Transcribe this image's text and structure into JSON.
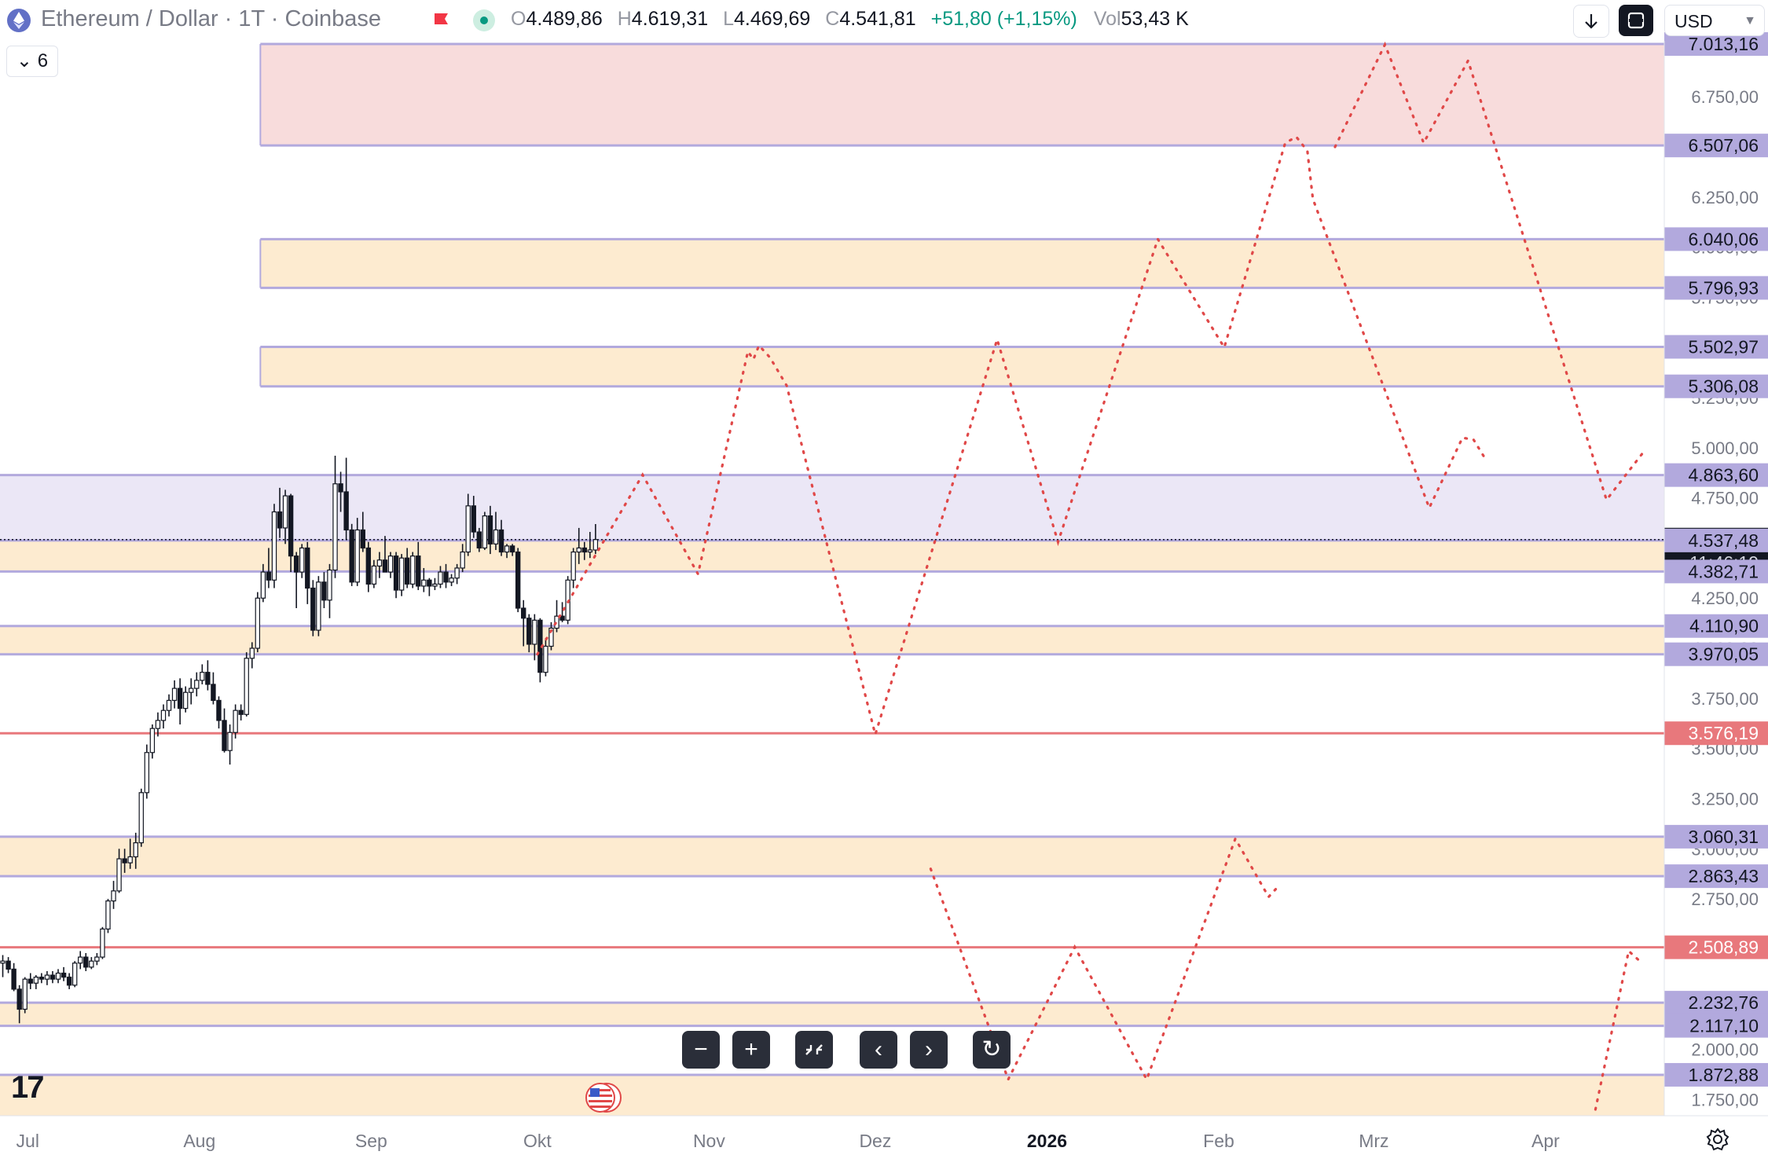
{
  "header": {
    "symbol_title": "Ethereum / Dollar · 1T · Coinbase",
    "open_key": "O",
    "open": "4.489,86",
    "high_key": "H",
    "high": "4.619,31",
    "low_key": "L",
    "low": "4.469,69",
    "close_key": "C",
    "close": "4.541,81",
    "change": "+51,80 (+1,15%)",
    "vol_key": "Vol",
    "volume": "53,43 K",
    "currency": "USD"
  },
  "indicator_toggle": "6",
  "logo_text": "17",
  "icons": {
    "symbol": "ethereum-icon",
    "flag": "flag-icon",
    "status": "market-status-dot",
    "download": "arrow-down-icon",
    "sync": "sync-icon",
    "settings": "gear-icon",
    "event": "us-flag-event-icon"
  },
  "colors": {
    "up": "#089981",
    "down": "#131722",
    "zone_fill": "#fdebd0",
    "zone_line": "#b2a9dd",
    "red_zone_fill": "#f8dcdc",
    "purple_zone_fill": "#ebe7f6",
    "red_line": "#e8787c",
    "projection": "#e04848",
    "axis_label_bg": "#b2a9dd",
    "red_label_bg": "#e8787c",
    "price_label_bg": "#131722"
  },
  "zoom_controls": [
    "−",
    "+",
    "reset-scale",
    "‹",
    "›",
    "↻"
  ],
  "chart_data": {
    "type": "candlestick",
    "x_axis": {
      "labels": [
        "Jul",
        "Aug",
        "Sep",
        "Okt",
        "Nov",
        "Dez",
        "2026",
        "Feb",
        "Mrz",
        "Apr"
      ],
      "label_dates": [
        "2025-07-01",
        "2025-08-01",
        "2025-09-01",
        "2025-10-01",
        "2025-11-01",
        "2025-12-01",
        "2026-01-01",
        "2026-02-01",
        "2026-03-01",
        "2026-04-01"
      ],
      "range": [
        "2025-06-26",
        "2026-04-19"
      ]
    },
    "y_axis": {
      "range": [
        1650,
        7150
      ],
      "ticks": [
        "7.000,00",
        "6.750,00",
        "6.500,00",
        "6.250,00",
        "6.000,00",
        "5.750,00",
        "5.500,00",
        "5.250,00",
        "5.000,00",
        "4.750,00",
        "4.500,00",
        "4.250,00",
        "4.000,00",
        "3.750,00",
        "3.500,00",
        "3.250,00",
        "3.000,00",
        "2.750,00",
        "2.500,00",
        "2.250,00",
        "2.000,00",
        "1.750,00"
      ],
      "tick_values": [
        7000,
        6750,
        6500,
        6250,
        6000,
        5750,
        5500,
        5250,
        5000,
        4750,
        4500,
        4250,
        4000,
        3750,
        3500,
        3250,
        3000,
        2750,
        2500,
        2250,
        2000,
        1750
      ]
    },
    "price_labels": [
      {
        "value": 7013.16,
        "text": "7.013,16",
        "kind": "zone"
      },
      {
        "value": 6507.06,
        "text": "6.507,06",
        "kind": "zone"
      },
      {
        "value": 6040.06,
        "text": "6.040,06",
        "kind": "zone"
      },
      {
        "value": 5796.93,
        "text": "5.796,93",
        "kind": "zone"
      },
      {
        "value": 5502.97,
        "text": "5.502,97",
        "kind": "zone"
      },
      {
        "value": 5306.08,
        "text": "5.306,08",
        "kind": "zone"
      },
      {
        "value": 4863.6,
        "text": "4.863,60",
        "kind": "zone"
      },
      {
        "value": 4541.81,
        "text": "4.541,81",
        "kind": "current",
        "countdown": "11:46:19"
      },
      {
        "value": 4537.48,
        "text": "4.537,48",
        "kind": "zone"
      },
      {
        "value": 4382.71,
        "text": "4.382,71",
        "kind": "zone"
      },
      {
        "value": 4110.9,
        "text": "4.110,90",
        "kind": "zone"
      },
      {
        "value": 3970.05,
        "text": "3.970,05",
        "kind": "zone"
      },
      {
        "value": 3576.19,
        "text": "3.576,19",
        "kind": "red"
      },
      {
        "value": 3060.31,
        "text": "3.060,31",
        "kind": "zone"
      },
      {
        "value": 2863.43,
        "text": "2.863,43",
        "kind": "zone"
      },
      {
        "value": 2508.89,
        "text": "2.508,89",
        "kind": "red"
      },
      {
        "value": 2232.76,
        "text": "2.232,76",
        "kind": "zone"
      },
      {
        "value": 2117.1,
        "text": "2.117,10",
        "kind": "zone"
      },
      {
        "value": 1872.88,
        "text": "1.872,88",
        "kind": "zone"
      }
    ],
    "zones": [
      {
        "low": 6507.06,
        "high": 7013.16,
        "style": "red",
        "from": "2025-08-12"
      },
      {
        "low": 5796.93,
        "high": 6040.06,
        "style": "orange",
        "from": "2025-08-12"
      },
      {
        "low": 5306.08,
        "high": 5502.97,
        "style": "orange",
        "from": "2025-08-12"
      },
      {
        "low": 4537.48,
        "high": 4863.6,
        "style": "purple",
        "from": "start"
      },
      {
        "low": 4382.71,
        "high": 4537.48,
        "style": "orange",
        "from": "start"
      },
      {
        "low": 3970.05,
        "high": 4110.9,
        "style": "orange",
        "from": "start"
      },
      {
        "low": 2863.43,
        "high": 3060.31,
        "style": "orange",
        "from": "start"
      },
      {
        "low": 2117.1,
        "high": 2232.76,
        "style": "orange",
        "from": "start"
      },
      {
        "low": 1650,
        "high": 1872.88,
        "style": "orange",
        "from": "start"
      }
    ],
    "lines": [
      {
        "value": 3576.19,
        "style": "red"
      },
      {
        "value": 2508.89,
        "style": "red"
      }
    ],
    "projection_paths": [
      [
        [
          "2025-10-01",
          3970
        ],
        [
          "2025-10-20",
          4865
        ],
        [
          "2025-10-30",
          4370
        ],
        [
          "2025-11-08",
          5480
        ],
        [
          "2025-11-09",
          5440
        ],
        [
          "2025-11-10",
          5510
        ],
        [
          "2025-11-12",
          5450
        ],
        [
          "2025-11-15",
          5310
        ],
        [
          "2025-12-01",
          3570
        ],
        [
          "2025-12-23",
          5540
        ],
        [
          "2026-01-03",
          4530
        ],
        [
          "2026-01-21",
          6040
        ],
        [
          "2026-02-02",
          5500
        ],
        [
          "2026-02-13",
          6520
        ],
        [
          "2026-02-15",
          6550
        ],
        [
          "2026-02-17",
          6480
        ],
        [
          "2026-02-18",
          6240
        ],
        [
          "2026-03-11",
          4700
        ],
        [
          "2026-03-17",
          5050
        ],
        [
          "2026-03-19",
          5040
        ],
        [
          "2026-03-21",
          4950
        ]
      ],
      [
        [
          "2026-02-22",
          6500
        ],
        [
          "2026-03-03",
          7010
        ],
        [
          "2026-03-10",
          6520
        ],
        [
          "2026-03-18",
          6930
        ],
        [
          "2026-04-12",
          4740
        ],
        [
          "2026-04-19",
          4990
        ]
      ],
      [
        [
          "2025-12-11",
          2900
        ],
        [
          "2025-12-25",
          1850
        ],
        [
          "2026-01-06",
          2510
        ],
        [
          "2026-01-19",
          1850
        ],
        [
          "2026-02-04",
          3050
        ],
        [
          "2026-02-10",
          2760
        ],
        [
          "2026-02-12",
          2820
        ]
      ],
      [
        [
          "2026-04-10",
          1700
        ],
        [
          "2026-04-16",
          2490
        ],
        [
          "2026-04-18",
          2440
        ]
      ]
    ],
    "candles_ohlc_per_day": [
      [
        2430,
        2470,
        2360,
        2440
      ],
      [
        2440,
        2460,
        2380,
        2400
      ],
      [
        2400,
        2430,
        2290,
        2300
      ],
      [
        2300,
        2320,
        2130,
        2200
      ],
      [
        2200,
        2360,
        2180,
        2350
      ],
      [
        2350,
        2380,
        2300,
        2330
      ],
      [
        2330,
        2370,
        2300,
        2360
      ],
      [
        2360,
        2380,
        2330,
        2350
      ],
      [
        2350,
        2390,
        2320,
        2370
      ],
      [
        2370,
        2390,
        2330,
        2350
      ],
      [
        2350,
        2400,
        2330,
        2380
      ],
      [
        2380,
        2410,
        2340,
        2360
      ],
      [
        2360,
        2380,
        2300,
        2320
      ],
      [
        2320,
        2440,
        2310,
        2430
      ],
      [
        2430,
        2490,
        2400,
        2460
      ],
      [
        2460,
        2480,
        2390,
        2410
      ],
      [
        2410,
        2460,
        2400,
        2440
      ],
      [
        2440,
        2480,
        2420,
        2460
      ],
      [
        2460,
        2610,
        2450,
        2600
      ],
      [
        2600,
        2750,
        2580,
        2740
      ],
      [
        2740,
        2840,
        2700,
        2790
      ],
      [
        2790,
        3000,
        2780,
        2950
      ],
      [
        2950,
        3000,
        2880,
        2930
      ],
      [
        2930,
        3050,
        2900,
        2960
      ],
      [
        2960,
        3080,
        2900,
        3030
      ],
      [
        3030,
        3300,
        3010,
        3280
      ],
      [
        3280,
        3520,
        3250,
        3480
      ],
      [
        3480,
        3620,
        3450,
        3600
      ],
      [
        3600,
        3680,
        3560,
        3640
      ],
      [
        3640,
        3720,
        3600,
        3690
      ],
      [
        3690,
        3770,
        3660,
        3740
      ],
      [
        3740,
        3840,
        3700,
        3800
      ],
      [
        3800,
        3850,
        3620,
        3700
      ],
      [
        3700,
        3810,
        3680,
        3780
      ],
      [
        3780,
        3850,
        3720,
        3800
      ],
      [
        3800,
        3880,
        3760,
        3840
      ],
      [
        3840,
        3920,
        3820,
        3880
      ],
      [
        3880,
        3940,
        3790,
        3820
      ],
      [
        3820,
        3880,
        3720,
        3740
      ],
      [
        3740,
        3760,
        3600,
        3640
      ],
      [
        3640,
        3700,
        3480,
        3490
      ],
      [
        3490,
        3620,
        3420,
        3580
      ],
      [
        3580,
        3720,
        3550,
        3690
      ],
      [
        3690,
        3720,
        3640,
        3670
      ],
      [
        3670,
        3980,
        3660,
        3950
      ],
      [
        3950,
        4030,
        3900,
        4000
      ],
      [
        4000,
        4280,
        3980,
        4250
      ],
      [
        4250,
        4420,
        4230,
        4380
      ],
      [
        4380,
        4500,
        4300,
        4340
      ],
      [
        4340,
        4720,
        4300,
        4680
      ],
      [
        4680,
        4800,
        4550,
        4600
      ],
      [
        4600,
        4790,
        4520,
        4760
      ],
      [
        4760,
        4770,
        4380,
        4460
      ],
      [
        4460,
        4480,
        4200,
        4380
      ],
      [
        4380,
        4520,
        4350,
        4500
      ],
      [
        4500,
        4530,
        4220,
        4300
      ],
      [
        4300,
        4340,
        4060,
        4090
      ],
      [
        4090,
        4360,
        4060,
        4330
      ],
      [
        4330,
        4380,
        4200,
        4240
      ],
      [
        4240,
        4420,
        4150,
        4390
      ],
      [
        4390,
        4960,
        4350,
        4820
      ],
      [
        4820,
        4880,
        4680,
        4780
      ],
      [
        4780,
        4950,
        4540,
        4590
      ],
      [
        4590,
        4620,
        4310,
        4330
      ],
      [
        4330,
        4650,
        4310,
        4590
      ],
      [
        4590,
        4680,
        4480,
        4500
      ],
      [
        4500,
        4530,
        4280,
        4320
      ],
      [
        4320,
        4440,
        4300,
        4410
      ],
      [
        4410,
        4480,
        4350,
        4440
      ],
      [
        4440,
        4560,
        4380,
        4380
      ],
      [
        4380,
        4480,
        4350,
        4460
      ],
      [
        4460,
        4480,
        4250,
        4290
      ],
      [
        4290,
        4470,
        4260,
        4450
      ],
      [
        4450,
        4500,
        4300,
        4320
      ],
      [
        4320,
        4480,
        4300,
        4460
      ],
      [
        4460,
        4530,
        4290,
        4310
      ],
      [
        4310,
        4400,
        4280,
        4340
      ],
      [
        4340,
        4350,
        4260,
        4310
      ],
      [
        4310,
        4350,
        4290,
        4320
      ],
      [
        4320,
        4410,
        4300,
        4380
      ],
      [
        4380,
        4420,
        4300,
        4330
      ],
      [
        4330,
        4370,
        4310,
        4350
      ],
      [
        4350,
        4420,
        4320,
        4400
      ],
      [
        4400,
        4520,
        4380,
        4480
      ],
      [
        4480,
        4770,
        4460,
        4710
      ],
      [
        4710,
        4760,
        4550,
        4580
      ],
      [
        4580,
        4600,
        4480,
        4500
      ],
      [
        4500,
        4680,
        4490,
        4660
      ],
      [
        4660,
        4710,
        4470,
        4520
      ],
      [
        4520,
        4680,
        4490,
        4590
      ],
      [
        4590,
        4640,
        4460,
        4480
      ],
      [
        4480,
        4520,
        4450,
        4510
      ],
      [
        4510,
        4520,
        4460,
        4480
      ],
      [
        4480,
        4500,
        4180,
        4200
      ],
      [
        4200,
        4240,
        4010,
        4150
      ],
      [
        4150,
        4170,
        3980,
        4020
      ],
      [
        4020,
        4170,
        3940,
        4140
      ],
      [
        4140,
        4150,
        3830,
        3880
      ],
      [
        3880,
        4050,
        3860,
        4010
      ],
      [
        4010,
        4130,
        3990,
        4100
      ],
      [
        4100,
        4240,
        4080,
        4160
      ],
      [
        4160,
        4230,
        4130,
        4140
      ],
      [
        4140,
        4360,
        4120,
        4340
      ],
      [
        4340,
        4500,
        4300,
        4480
      ],
      [
        4480,
        4600,
        4420,
        4500
      ],
      [
        4500,
        4530,
        4440,
        4480
      ],
      [
        4480,
        4580,
        4450,
        4490
      ],
      [
        4489.86,
        4619.31,
        4469.69,
        4541.81
      ]
    ],
    "first_candle_date": "2025-06-26",
    "last_price": 4541.81,
    "countdown": "11:46:19"
  }
}
